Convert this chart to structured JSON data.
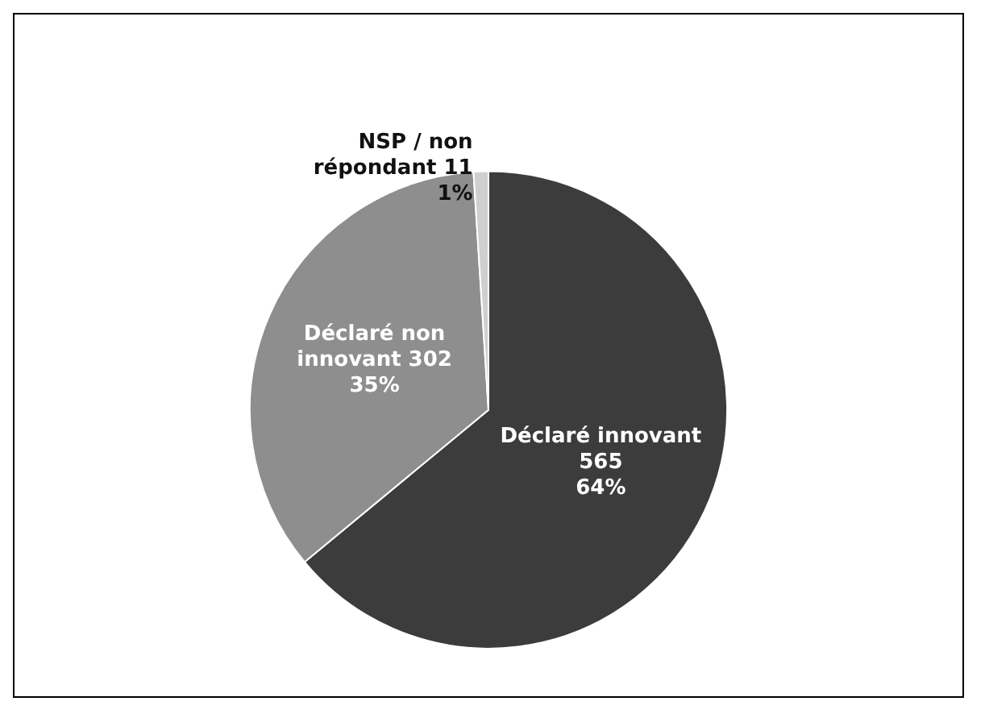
{
  "chart_data": {
    "type": "pie",
    "categories": [
      "Déclaré innovant 565",
      "Déclaré non innovant 302",
      "NSP / non répondant 11"
    ],
    "values": [
      64,
      35,
      1
    ],
    "colors": [
      "#3c3c3c",
      "#8e8e8e",
      "#cfcfcf"
    ],
    "value_labels": [
      "64%",
      "35%",
      "1%"
    ],
    "legend": false
  }
}
